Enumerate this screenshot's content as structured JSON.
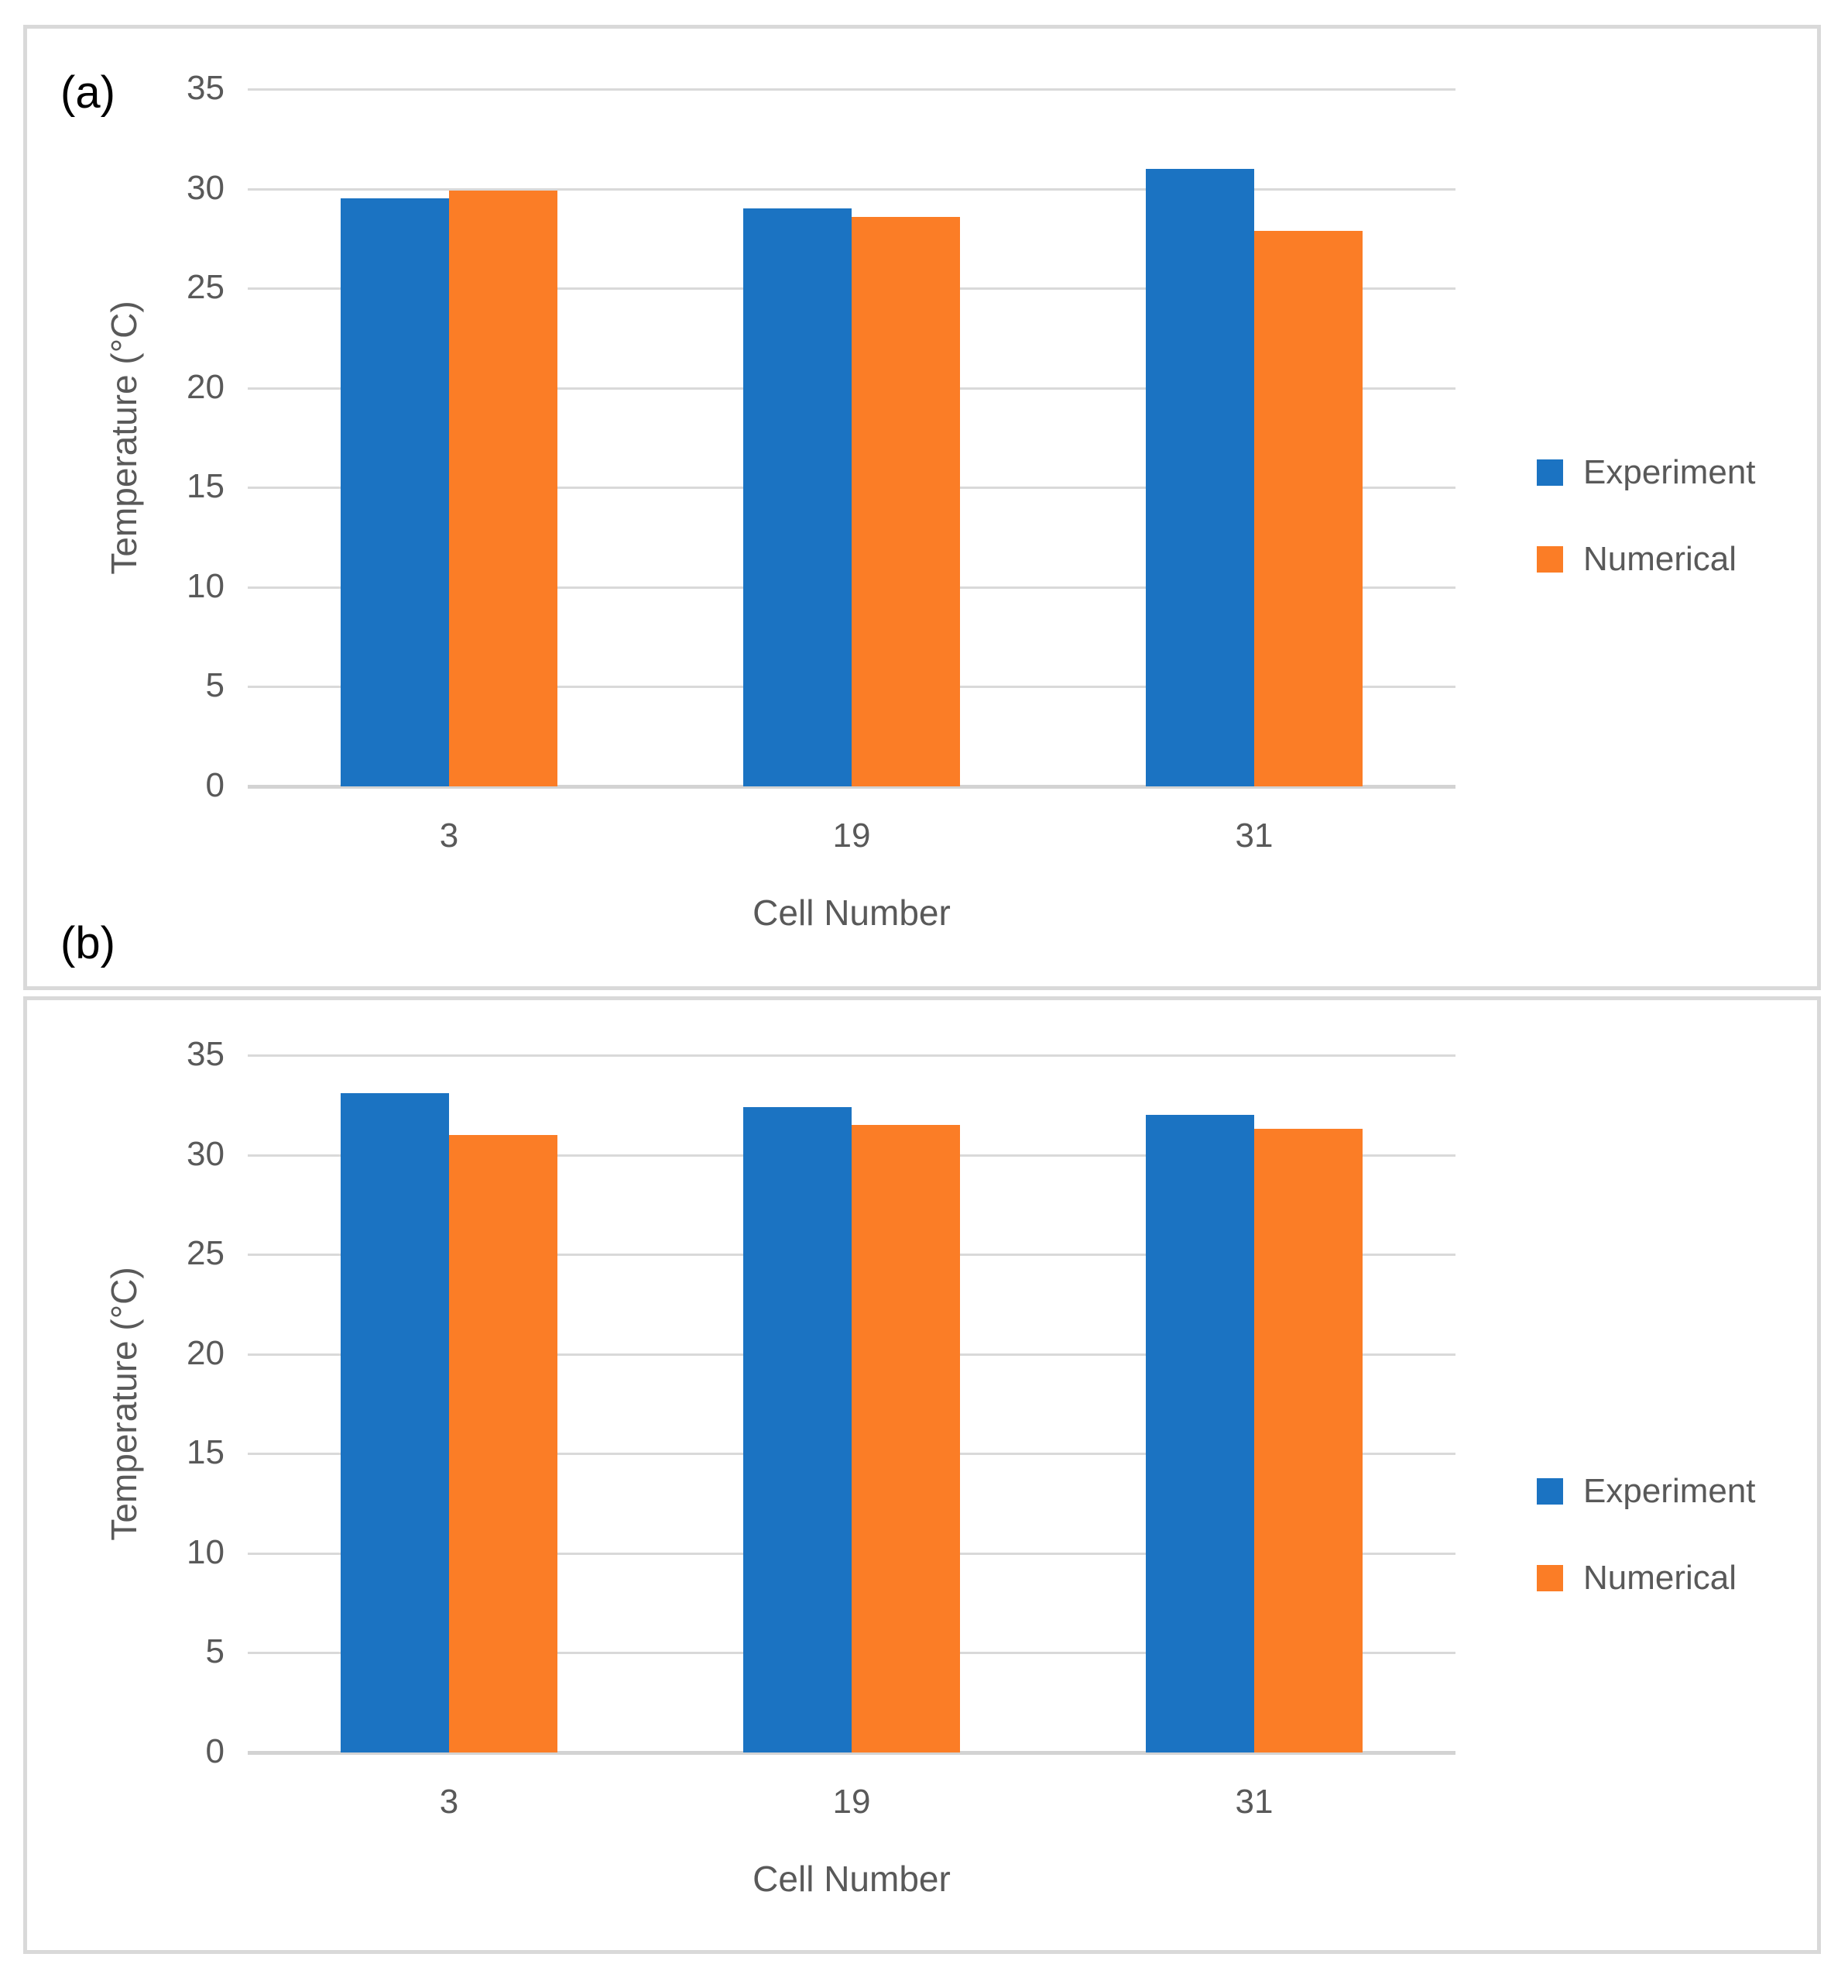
{
  "figure": {
    "panels": [
      {
        "label": "(a)"
      },
      {
        "label": "(b)"
      }
    ]
  },
  "colors": {
    "experiment": "#1B73C2",
    "numerical": "#FB7D26",
    "gridline": "#D9D9D9",
    "axis_line": "#D3D3D3",
    "tick_text": "#595959",
    "panel_border": "#D9D9D9",
    "panel_label_text": "#000000"
  },
  "chart_data": [
    {
      "type": "bar",
      "panel": "(a)",
      "categories": [
        "3",
        "19",
        "31"
      ],
      "series": [
        {
          "name": "Experiment",
          "color": "#1B73C2",
          "values": [
            29.5,
            29.0,
            31.0
          ]
        },
        {
          "name": "Numerical",
          "color": "#FB7D26",
          "values": [
            29.9,
            28.6,
            27.9
          ]
        }
      ],
      "title": "",
      "xlabel": "Cell Number",
      "ylabel": "Temperature (°C)",
      "ylim": [
        0,
        35
      ],
      "ytick_step": 5,
      "yticks": [
        "0",
        "5",
        "10",
        "15",
        "20",
        "25",
        "30",
        "35"
      ],
      "grid": true,
      "legend_position": "right"
    },
    {
      "type": "bar",
      "panel": "(b)",
      "categories": [
        "3",
        "19",
        "31"
      ],
      "series": [
        {
          "name": "Experiment",
          "color": "#1B73C2",
          "values": [
            33.1,
            32.4,
            32.0
          ]
        },
        {
          "name": "Numerical",
          "color": "#FB7D26",
          "values": [
            31.0,
            31.5,
            31.3
          ]
        }
      ],
      "title": "",
      "xlabel": "Cell Number",
      "ylabel": "Temperature (°C)",
      "ylim": [
        0,
        35
      ],
      "ytick_step": 5,
      "yticks": [
        "0",
        "5",
        "10",
        "15",
        "20",
        "25",
        "30",
        "35"
      ],
      "grid": true,
      "legend_position": "right"
    }
  ]
}
